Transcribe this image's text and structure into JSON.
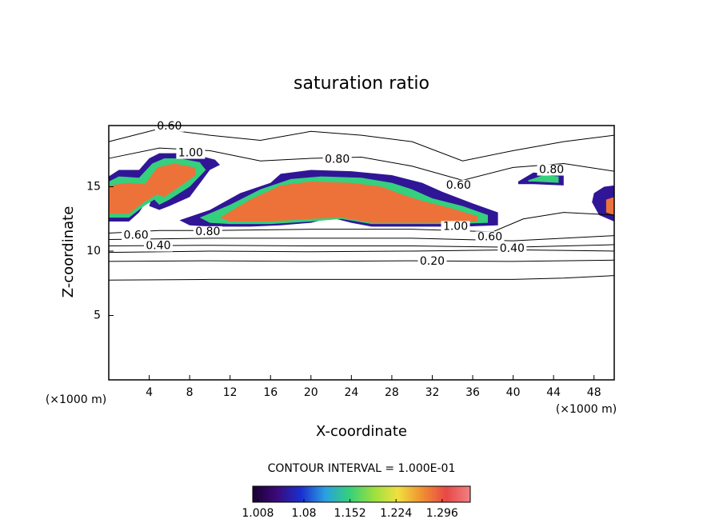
{
  "chart_data": {
    "type": "contour",
    "title": "saturation ratio",
    "x_label": "X-coordinate",
    "y_label": "Z-coordinate",
    "x_unit": "(×1000 m)",
    "x_unit_right": "(×1000 m)",
    "xlim": [
      0,
      50
    ],
    "ylim": [
      0,
      19.75
    ],
    "xticks": [
      4,
      8,
      12,
      16,
      20,
      24,
      28,
      32,
      36,
      40,
      44,
      48
    ],
    "yticks": [
      5,
      10,
      15
    ],
    "contour_interval": "CONTOUR INTERVAL = 1.000E-01",
    "contours": [
      {
        "x": [
          0,
          10,
          20,
          30,
          40,
          45,
          50
        ],
        "y": [
          7.75,
          7.8,
          7.8,
          7.8,
          7.8,
          7.9,
          8.1
        ]
      },
      {
        "x": [
          0,
          10,
          20,
          30,
          40,
          50
        ],
        "y": [
          9.2,
          9.25,
          9.2,
          9.25,
          9.2,
          9.3
        ]
      },
      {
        "x": [
          0,
          10,
          20,
          30,
          40,
          50
        ],
        "y": [
          9.9,
          10,
          9.95,
          10,
          10.1,
          10
        ]
      },
      {
        "x": [
          0,
          10,
          20,
          30,
          40,
          50
        ],
        "y": [
          10.4,
          10.45,
          10.4,
          10.4,
          10.3,
          10.5
        ]
      },
      {
        "x": [
          0,
          10,
          20,
          30,
          40,
          50
        ],
        "y": [
          10.9,
          11,
          11,
          11,
          10.8,
          11.2
        ]
      },
      {
        "x": [
          0,
          5,
          10,
          20,
          30,
          38,
          41,
          45,
          50
        ],
        "y": [
          11.4,
          11.6,
          11.6,
          11.7,
          11.7,
          11.5,
          12.5,
          13,
          12.8
        ]
      },
      {
        "x": [
          0,
          5,
          10,
          15,
          20,
          25,
          30,
          35,
          40,
          45,
          50
        ],
        "y": [
          18.5,
          19.5,
          19,
          18.6,
          19.3,
          19,
          18.5,
          17,
          17.8,
          18.5,
          19
        ]
      },
      {
        "x": [
          0,
          5,
          10,
          15,
          20,
          25,
          30,
          35,
          40,
          45,
          50
        ],
        "y": [
          17.2,
          18,
          17.8,
          17,
          17.2,
          17.3,
          16.6,
          15.5,
          16.5,
          16.8,
          16.2
        ]
      }
    ],
    "contour_labels": [
      {
        "value": 0.2,
        "label": "0.20",
        "x": 32.0,
        "y": 9.2
      },
      {
        "value": 0.4,
        "label": "0.40",
        "x": 4.9,
        "y": 10.4
      },
      {
        "value": 0.4,
        "label": "0.40",
        "x": 39.9,
        "y": 10.2
      },
      {
        "value": 0.6,
        "label": "0.60",
        "x": 2.7,
        "y": 11.2
      },
      {
        "value": 0.6,
        "label": "0.60",
        "x": 37.7,
        "y": 11.1
      },
      {
        "value": 0.8,
        "label": "0.80",
        "x": 9.8,
        "y": 11.5
      },
      {
        "value": 1,
        "label": "1.00",
        "x": 34.3,
        "y": 11.9
      },
      {
        "value": 0.8,
        "label": "0.80",
        "x": 22.6,
        "y": 17.1
      },
      {
        "value": 0.6,
        "label": "0.60",
        "x": 6.0,
        "y": 19.7
      },
      {
        "value": 1,
        "label": "1.00",
        "x": 8.1,
        "y": 17.6
      },
      {
        "value": 0.6,
        "label": "0.60",
        "x": 34.6,
        "y": 15.1
      },
      {
        "value": 0.8,
        "label": "0.80",
        "x": 43.8,
        "y": 16.3
      }
    ],
    "shaded": [
      {
        "value": 1.05,
        "x": [
          7,
          10,
          13,
          16,
          17,
          20,
          24,
          28,
          31,
          33,
          36,
          38.5,
          38.5,
          35,
          30,
          26,
          24,
          22,
          20,
          17,
          14,
          10,
          8
        ],
        "y": [
          12.4,
          13.2,
          14.5,
          15.3,
          16.0,
          16.3,
          16.2,
          15.9,
          15.3,
          14.6,
          13.7,
          13.0,
          12.0,
          11.9,
          11.9,
          11.9,
          12.2,
          12.6,
          12.2,
          12.0,
          11.9,
          11.9,
          12.0
        ]
      },
      {
        "value": 1.15,
        "x": [
          9,
          12,
          15,
          18,
          21,
          25,
          28,
          30,
          32,
          35,
          37.5,
          37.5,
          34,
          30,
          26,
          23,
          20,
          16,
          12,
          10
        ],
        "y": [
          12.6,
          13.6,
          14.8,
          15.6,
          15.8,
          15.7,
          15.3,
          14.8,
          14.1,
          13.5,
          12.8,
          12.2,
          12.1,
          12.1,
          12.1,
          12.5,
          12.3,
          12.1,
          12.1,
          12.2
        ]
      },
      {
        "value": 1.28,
        "x": [
          11,
          14,
          17,
          20,
          24,
          27,
          29,
          31,
          34,
          36.5,
          36.5,
          33,
          29,
          26,
          23,
          20,
          16,
          12
        ],
        "y": [
          12.6,
          14.0,
          15.1,
          15.4,
          15.3,
          15.0,
          14.4,
          13.9,
          13.3,
          12.7,
          12.3,
          12.2,
          12.2,
          12.2,
          12.6,
          12.5,
          12.3,
          12.3
        ]
      },
      {
        "value": 1.05,
        "x": [
          0,
          1,
          3,
          4,
          5,
          7,
          9,
          10.5,
          11,
          10,
          8,
          6,
          5,
          4,
          4.5,
          3,
          2,
          0
        ],
        "y": [
          15.8,
          16.3,
          16.3,
          17.2,
          17.6,
          17.6,
          17.4,
          17.1,
          16.7,
          16.3,
          14.2,
          13.5,
          13.2,
          13.5,
          14.8,
          13.0,
          12.3,
          12.3
        ]
      },
      {
        "value": 1.15,
        "x": [
          0,
          1,
          3,
          4.3,
          5.5,
          7,
          9,
          9.6,
          8,
          6,
          5,
          4.5,
          3.5,
          2,
          0
        ],
        "y": [
          15.4,
          15.8,
          15.7,
          16.8,
          17.2,
          17.2,
          16.9,
          16.3,
          15,
          14,
          13.6,
          14,
          13.5,
          12.6,
          12.6
        ]
      },
      {
        "value": 1.28,
        "x": [
          0,
          2,
          3.6,
          4.8,
          6.5,
          8.5,
          8.6,
          7,
          5.5,
          4.8,
          3.5,
          2,
          0
        ],
        "y": [
          15.1,
          15.3,
          15.2,
          16.5,
          16.8,
          16.5,
          15.9,
          15,
          14.2,
          14.4,
          13.8,
          12.9,
          12.9
        ]
      },
      {
        "value": 1.05,
        "x": [
          40.5,
          42,
          45,
          45,
          42,
          40.5
        ],
        "y": [
          15.4,
          16.1,
          15.9,
          15.1,
          15.2,
          15.2
        ]
      },
      {
        "value": 1.15,
        "x": [
          41.5,
          43,
          44.5,
          44.5,
          42,
          41.5
        ],
        "y": [
          15.5,
          15.9,
          15.8,
          15.3,
          15.4,
          15.4
        ]
      },
      {
        "value": 1.05,
        "x": [
          48,
          49,
          50,
          50,
          48.5,
          47.8
        ],
        "y": [
          14.5,
          15,
          15.1,
          12.3,
          12.8,
          13.8
        ]
      },
      {
        "value": 1.28,
        "x": [
          49.2,
          50,
          50,
          49.2
        ],
        "y": [
          14,
          14.2,
          12.8,
          13
        ]
      }
    ],
    "clim": [
      1.0,
      1.34
    ],
    "colorbar_ticks": [
      1.008,
      1.08,
      1.152,
      1.224,
      1.296
    ],
    "colors": [
      "#1a0033",
      "#3b0a7a",
      "#1a2fd0",
      "#2aa0e0",
      "#35d07a",
      "#9ae040",
      "#f0e040",
      "#f09030",
      "#e84848",
      "#f08080"
    ]
  }
}
